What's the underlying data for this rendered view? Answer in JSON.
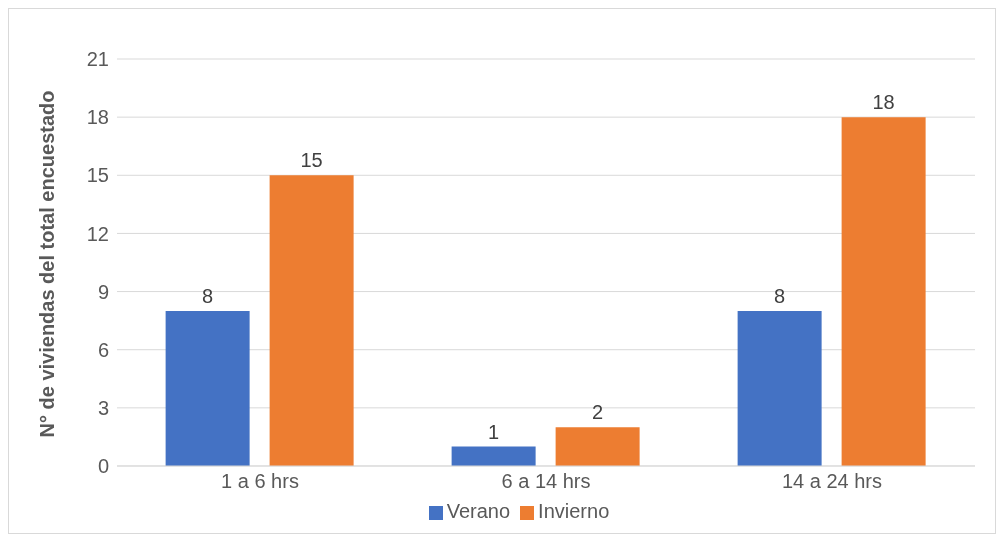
{
  "chart_data": {
    "type": "bar",
    "ylabel": "N° de viviendas del total encuestado",
    "categories": [
      "1 a 6 hrs",
      "6 a 14 hrs",
      "14 a 24 hrs"
    ],
    "series": [
      {
        "name": "Verano",
        "color": "#4472c4",
        "values": [
          8,
          1,
          8
        ]
      },
      {
        "name": "Invierno",
        "color": "#ed7d31",
        "values": [
          15,
          2,
          18
        ]
      }
    ],
    "ylim": [
      0,
      21
    ],
    "yticks": [
      0,
      3,
      6,
      9,
      12,
      15,
      18,
      21
    ],
    "grid": "y",
    "legend": "bottom",
    "data_labels": true
  }
}
